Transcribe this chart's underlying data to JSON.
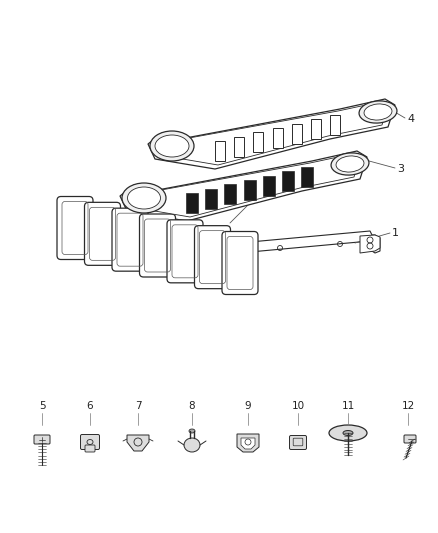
{
  "background_color": "#ffffff",
  "line_color": "#2a2a2a",
  "label_color": "#222222",
  "fig_w": 4.38,
  "fig_h": 5.33,
  "dpi": 100
}
